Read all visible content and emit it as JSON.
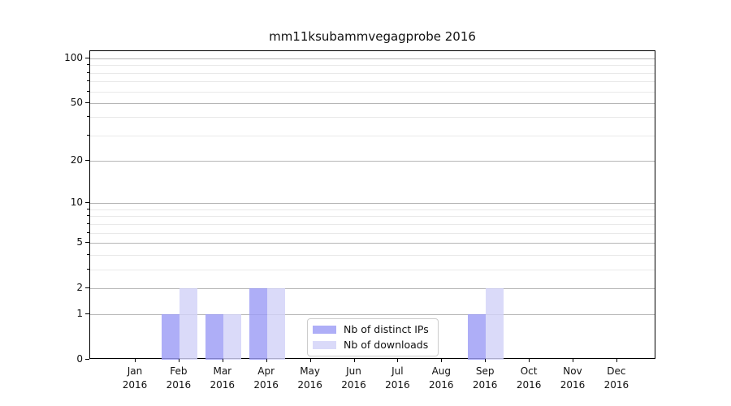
{
  "title": "mm11ksubammvegagprobe 2016",
  "colors": {
    "bar_distinct_ips": "#9c9cf5",
    "bar_downloads": "#d2d2f8",
    "grid_major": "#b6b6b6",
    "grid_minor": "#e9e9e9",
    "spine": "#000000"
  },
  "chart_data": {
    "type": "bar",
    "title": "mm11ksubammvegagprobe 2016",
    "categories": [
      "Jan",
      "Feb",
      "Mar",
      "Apr",
      "May",
      "Jun",
      "Jul",
      "Aug",
      "Sep",
      "Oct",
      "Nov",
      "Dec"
    ],
    "category_year": "2016",
    "series": [
      {
        "name": "Nb of distinct IPs",
        "color": "#9c9cf5",
        "values": [
          0,
          1,
          1,
          2,
          0,
          0,
          0,
          0,
          1,
          0,
          0,
          0
        ]
      },
      {
        "name": "Nb of downloads",
        "color": "#d2d2f8",
        "values": [
          0,
          2,
          1,
          2,
          0,
          0,
          0,
          0,
          2,
          0,
          0,
          0
        ]
      }
    ],
    "xlabel": "",
    "ylabel": "",
    "yscale": "log10(1+y)",
    "ylim": [
      0,
      112
    ],
    "yticks_major": [
      0,
      1,
      2,
      5,
      10,
      20,
      50,
      100
    ],
    "yticks_minor": [
      3,
      4,
      6,
      7,
      8,
      9,
      30,
      40,
      60,
      70,
      80,
      90
    ],
    "grid": "horizontal",
    "legend_position": "lower center"
  }
}
